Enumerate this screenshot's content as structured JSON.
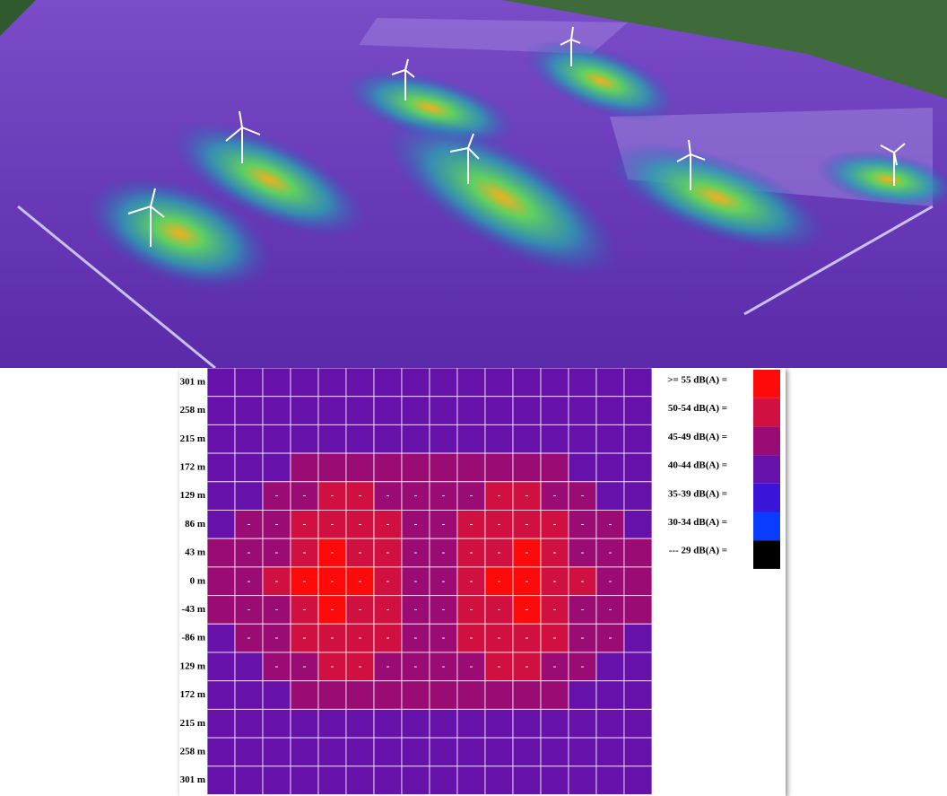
{
  "heatmap": {
    "row_labels": [
      "301 m",
      "258 m",
      "215 m",
      "172 m",
      "129 m",
      "86 m",
      "43 m",
      "0 m",
      "-43 m",
      "-86 m",
      "129 m",
      "172 m",
      "215 m",
      "258 m",
      "301 m"
    ],
    "rows": [
      [
        3,
        3,
        3,
        3,
        3,
        3,
        3,
        3,
        3,
        3,
        3,
        3,
        3,
        3,
        3,
        3
      ],
      [
        3,
        3,
        3,
        3,
        3,
        3,
        3,
        3,
        3,
        3,
        3,
        3,
        3,
        3,
        3,
        3
      ],
      [
        3,
        3,
        3,
        3,
        3,
        3,
        3,
        3,
        3,
        3,
        3,
        3,
        3,
        3,
        3,
        3
      ],
      [
        3,
        3,
        3,
        2,
        2,
        2,
        2,
        2,
        2,
        2,
        2,
        2,
        2,
        3,
        3,
        3
      ],
      [
        3,
        3,
        2,
        2,
        1,
        1,
        2,
        2,
        2,
        2,
        1,
        1,
        2,
        2,
        3,
        3
      ],
      [
        3,
        2,
        2,
        1,
        1,
        1,
        1,
        2,
        2,
        1,
        1,
        1,
        1,
        2,
        2,
        3
      ],
      [
        2,
        2,
        2,
        1,
        0,
        1,
        1,
        2,
        2,
        1,
        1,
        0,
        1,
        2,
        2,
        2
      ],
      [
        2,
        2,
        1,
        0,
        0,
        0,
        1,
        2,
        2,
        1,
        0,
        0,
        1,
        1,
        2,
        2
      ],
      [
        2,
        2,
        2,
        1,
        0,
        1,
        1,
        2,
        2,
        1,
        1,
        0,
        1,
        2,
        2,
        2
      ],
      [
        3,
        2,
        2,
        1,
        1,
        1,
        1,
        2,
        2,
        1,
        1,
        1,
        1,
        2,
        2,
        3
      ],
      [
        3,
        3,
        2,
        2,
        1,
        1,
        2,
        2,
        2,
        2,
        1,
        1,
        2,
        2,
        3,
        3
      ],
      [
        3,
        3,
        3,
        2,
        2,
        2,
        2,
        2,
        2,
        2,
        2,
        2,
        2,
        3,
        3,
        3
      ],
      [
        3,
        3,
        3,
        3,
        3,
        3,
        3,
        3,
        3,
        3,
        3,
        3,
        3,
        3,
        3,
        3
      ],
      [
        3,
        3,
        3,
        3,
        3,
        3,
        3,
        3,
        3,
        3,
        3,
        3,
        3,
        3,
        3,
        3
      ],
      [
        3,
        3,
        3,
        3,
        3,
        3,
        3,
        3,
        3,
        3,
        3,
        3,
        3,
        3,
        3,
        3
      ]
    ],
    "dash": "-",
    "dash_spans": [
      null,
      null,
      null,
      null,
      [
        2,
        13
      ],
      [
        1,
        14
      ],
      [
        1,
        14
      ],
      [
        1,
        14
      ],
      [
        1,
        14
      ],
      [
        1,
        14
      ],
      [
        2,
        13
      ],
      null,
      null,
      null,
      null
    ],
    "legend": [
      {
        "label": ">= 55 dB(A) =",
        "color": "#ff0a0a"
      },
      {
        "label": "50-54 dB(A) =",
        "color": "#cf1040"
      },
      {
        "label": "45-49 dB(A) =",
        "color": "#9a0c74"
      },
      {
        "label": "40-44 dB(A) =",
        "color": "#6612aa"
      },
      {
        "label": "35-39 dB(A) =",
        "color": "#3a14d8"
      },
      {
        "label": "30-34 dB(A) =",
        "color": "#0a3cff"
      },
      {
        "label": "--- 29 dB(A) =",
        "color": "#000000"
      }
    ]
  }
}
